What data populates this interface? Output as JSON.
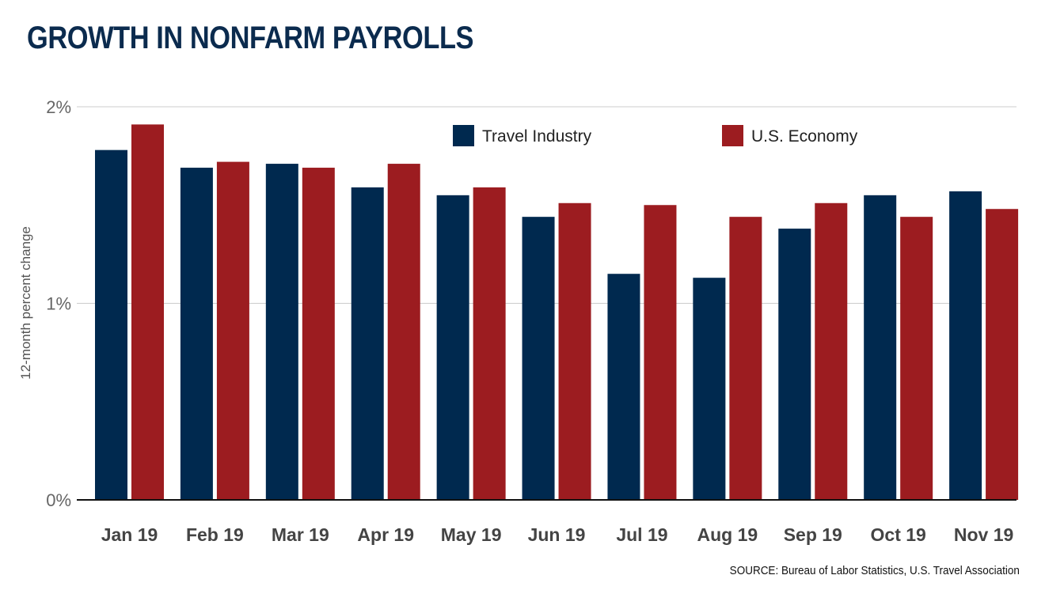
{
  "chart_data": {
    "type": "bar",
    "title": "GROWTH IN NONFARM PAYROLLS",
    "ylabel": "12-month percent change",
    "xlabel": "",
    "source": "SOURCE: Bureau of Labor Statistics, U.S. Travel Association",
    "categories": [
      "Jan 19",
      "Feb 19",
      "Mar 19",
      "Apr 19",
      "May 19",
      "Jun 19",
      "Jul 19",
      "Aug 19",
      "Sep 19",
      "Oct 19",
      "Nov 19"
    ],
    "series": [
      {
        "name": "Travel Industry",
        "color": "#00294f",
        "values": [
          1.78,
          1.69,
          1.71,
          1.59,
          1.55,
          1.44,
          1.15,
          1.13,
          1.38,
          1.55,
          1.57
        ]
      },
      {
        "name": "U.S. Economy",
        "color": "#9c1c20",
        "values": [
          1.91,
          1.72,
          1.69,
          1.71,
          1.59,
          1.51,
          1.5,
          1.44,
          1.51,
          1.44,
          1.48
        ]
      }
    ],
    "ylim": [
      0,
      2
    ],
    "yticks": [
      {
        "value": 0,
        "label": "0%"
      },
      {
        "value": 1,
        "label": "1%"
      },
      {
        "value": 2,
        "label": "2%"
      }
    ],
    "grid": true,
    "legend_position": "top-right"
  }
}
